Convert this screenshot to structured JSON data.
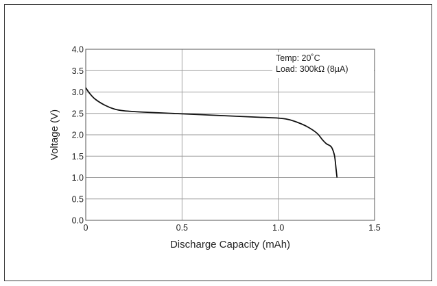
{
  "chart_data": {
    "type": "line",
    "title": "",
    "xlabel": "Discharge Capacity (mAh)",
    "ylabel": "Voltage (V)",
    "xlim": [
      0,
      1.5
    ],
    "ylim": [
      0,
      4.0
    ],
    "x_ticks": [
      "0",
      "0.5",
      "1.0",
      "1.5"
    ],
    "y_ticks": [
      "0.0",
      "0.5",
      "1.0",
      "1.5",
      "2.0",
      "2.5",
      "3.0",
      "3.5",
      "4.0"
    ],
    "grid": true,
    "annotations": [
      "Temp:  20˚C",
      "Load:  300kΩ (8µA)"
    ],
    "series": [
      {
        "x": [
          0.0,
          0.02,
          0.05,
          0.1,
          0.15,
          0.2,
          0.3,
          0.5,
          0.7,
          0.9,
          1.0,
          1.05,
          1.1,
          1.15,
          1.2,
          1.23,
          1.25,
          1.27,
          1.28,
          1.29,
          1.295,
          1.3,
          1.305
        ],
        "values": [
          3.1,
          2.97,
          2.83,
          2.69,
          2.6,
          2.56,
          2.53,
          2.49,
          2.45,
          2.41,
          2.39,
          2.36,
          2.29,
          2.19,
          2.04,
          1.88,
          1.79,
          1.74,
          1.68,
          1.55,
          1.42,
          1.2,
          1.0
        ]
      }
    ]
  }
}
